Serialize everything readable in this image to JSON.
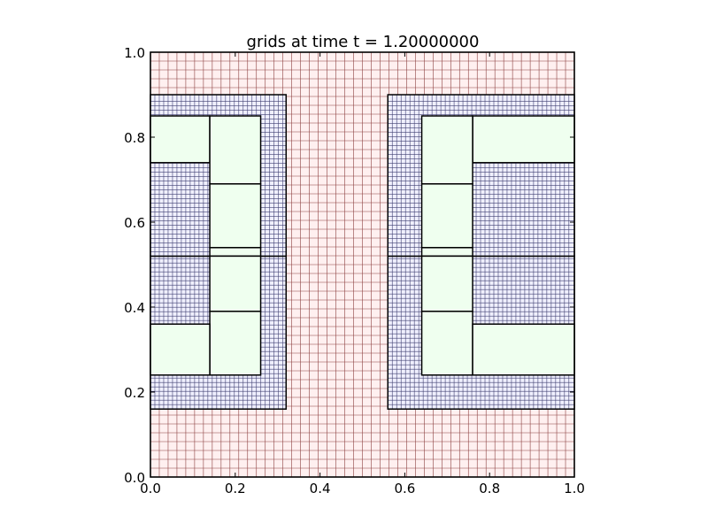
{
  "chart_data": {
    "type": "grid-patches",
    "title": "grids at time t =      1.20000000",
    "xlim": [
      0,
      1
    ],
    "ylim": [
      0,
      1
    ],
    "xticks": [
      {
        "value": 0,
        "label": "0.0"
      },
      0.2,
      0.4,
      0.6,
      0.8,
      {
        "value": 1,
        "label": "1.0"
      }
    ],
    "yticks": [
      {
        "value": 0,
        "label": "0.0"
      },
      0.2,
      0.4,
      0.6,
      0.8,
      {
        "value": 1,
        "label": "1.0"
      }
    ],
    "series": [
      {
        "fill": "#fff0f0",
        "line_color": "#8b4040",
        "dx": 0.0208333,
        "patches": [
          {
            "x": [
              0,
              1
            ],
            "y": [
              0,
              1
            ]
          }
        ]
      },
      {
        "fill": "#f0f0ff",
        "line_color": "#404070",
        "dx": 0.0104167,
        "patches": [
          {
            "x": [
              0,
              0.32
            ],
            "y": [
              0.16,
              0.52
            ]
          },
          {
            "x": [
              0,
              0.32
            ],
            "y": [
              0.52,
              0.9
            ]
          },
          {
            "x": [
              0.56,
              1
            ],
            "y": [
              0.16,
              0.52
            ]
          },
          {
            "x": [
              0.56,
              1
            ],
            "y": [
              0.52,
              0.9
            ]
          }
        ]
      },
      {
        "fill": "#efffef",
        "patches": [
          {
            "x": [
              0,
              0.14
            ],
            "y": [
              0.74,
              0.85
            ]
          },
          {
            "x": [
              0.14,
              0.26
            ],
            "y": [
              0.69,
              0.85
            ]
          },
          {
            "x": [
              0.14,
              0.26
            ],
            "y": [
              0.54,
              0.69
            ]
          },
          {
            "x": [
              0.14,
              0.26
            ],
            "y": [
              0.52,
              0.54
            ]
          },
          {
            "x": [
              0.14,
              0.26
            ],
            "y": [
              0.39,
              0.52
            ]
          },
          {
            "x": [
              0.14,
              0.26
            ],
            "y": [
              0.24,
              0.39
            ]
          },
          {
            "x": [
              0,
              0.14
            ],
            "y": [
              0.24,
              0.36
            ]
          },
          {
            "x": [
              0.76,
              1
            ],
            "y": [
              0.74,
              0.85
            ]
          },
          {
            "x": [
              0.64,
              0.76
            ],
            "y": [
              0.69,
              0.85
            ]
          },
          {
            "x": [
              0.64,
              0.76
            ],
            "y": [
              0.54,
              0.69
            ]
          },
          {
            "x": [
              0.64,
              0.76
            ],
            "y": [
              0.52,
              0.54
            ]
          },
          {
            "x": [
              0.64,
              0.76
            ],
            "y": [
              0.39,
              0.52
            ]
          },
          {
            "x": [
              0.64,
              0.76
            ],
            "y": [
              0.24,
              0.39
            ]
          },
          {
            "x": [
              0.76,
              1
            ],
            "y": [
              0.24,
              0.36
            ]
          }
        ]
      }
    ]
  }
}
